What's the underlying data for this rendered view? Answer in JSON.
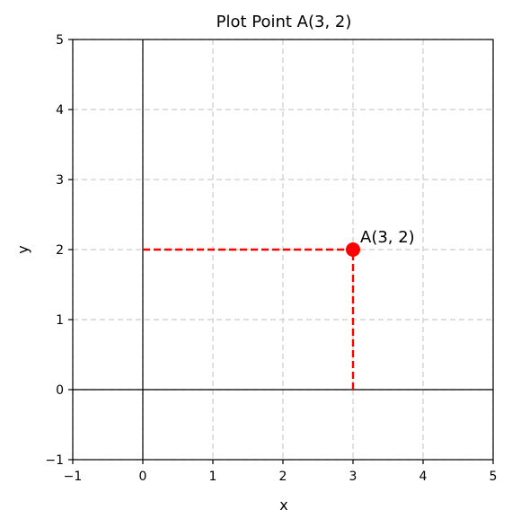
{
  "chart_data": {
    "type": "scatter",
    "title": "Plot Point A(3, 2)",
    "xlabel": "x",
    "ylabel": "y",
    "xlim": [
      -1,
      5
    ],
    "ylim": [
      -1,
      5
    ],
    "x_ticks": [
      "−1",
      "0",
      "1",
      "2",
      "3",
      "4",
      "5"
    ],
    "y_ticks": [
      "−1",
      "0",
      "1",
      "2",
      "3",
      "4",
      "5"
    ],
    "grid": true,
    "point": {
      "x": 3,
      "y": 2,
      "label": "A(3, 2)",
      "color": "#ff0000"
    },
    "projection_color": "#ff0000",
    "axis_line_color": "#000000",
    "grid_color": "#cccccc"
  }
}
